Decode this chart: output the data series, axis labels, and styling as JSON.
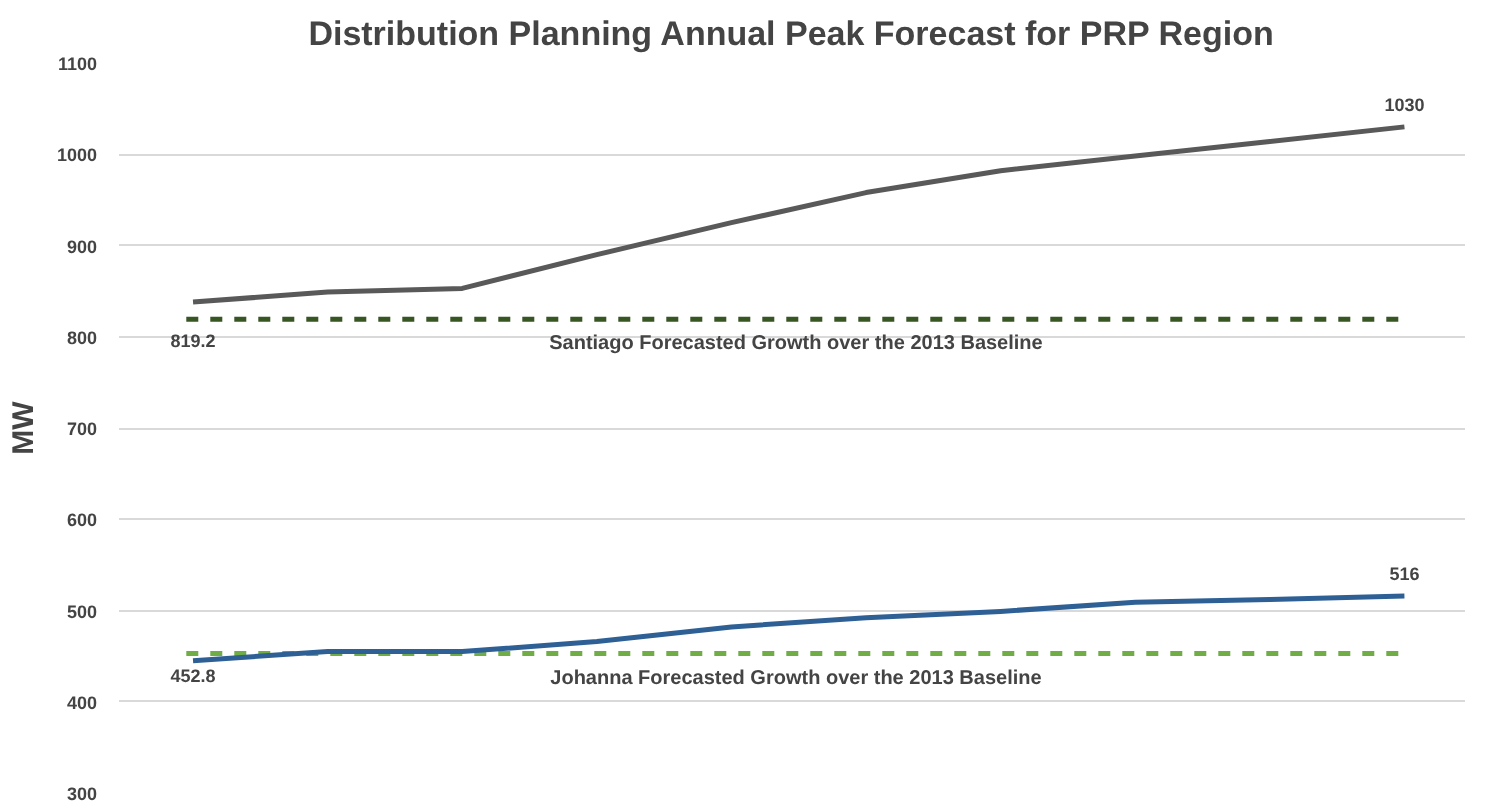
{
  "chart_data": {
    "type": "line",
    "title": "Distribution Planning Annual Peak Forecast for PRP Region",
    "ylabel": "MW",
    "categories": [
      null,
      null,
      null,
      null,
      null,
      null,
      null,
      null,
      null,
      null
    ],
    "series": [
      {
        "color": "#595959",
        "values": [
          838,
          849,
          853,
          890,
          925,
          958,
          982,
          998,
          1014,
          1030
        ],
        "value_labels": [
          null,
          null,
          null,
          null,
          null,
          null,
          null,
          null,
          null,
          "1030"
        ]
      },
      {
        "color": "#2e6095",
        "values": [
          445,
          455,
          455,
          466,
          482,
          492,
          499,
          509,
          512,
          516
        ],
        "value_labels": [
          null,
          null,
          null,
          null,
          null,
          null,
          null,
          null,
          null,
          "516"
        ]
      }
    ],
    "ref_lines": [
      {
        "axis": "y",
        "value": 819.2,
        "label": "Santiago Forecasted Growth over the 2013  Baseline",
        "color": "#375623",
        "line_style": "dashed"
      },
      {
        "axis": "y",
        "value": 452.8,
        "label": "Johanna Forecasted Growth over the 2013  Baseline",
        "color": "#70ad47",
        "line_style": "dashed"
      }
    ],
    "annotations": [
      {
        "text": "819.2",
        "y": 819.2
      },
      {
        "text": "452.8",
        "y": 452.8
      }
    ],
    "ylim": [
      300,
      1100
    ],
    "yticks": [
      300,
      400,
      500,
      600,
      700,
      800,
      900,
      1000,
      1100
    ],
    "grid": "y",
    "marker": "none",
    "line_style": "solid"
  }
}
